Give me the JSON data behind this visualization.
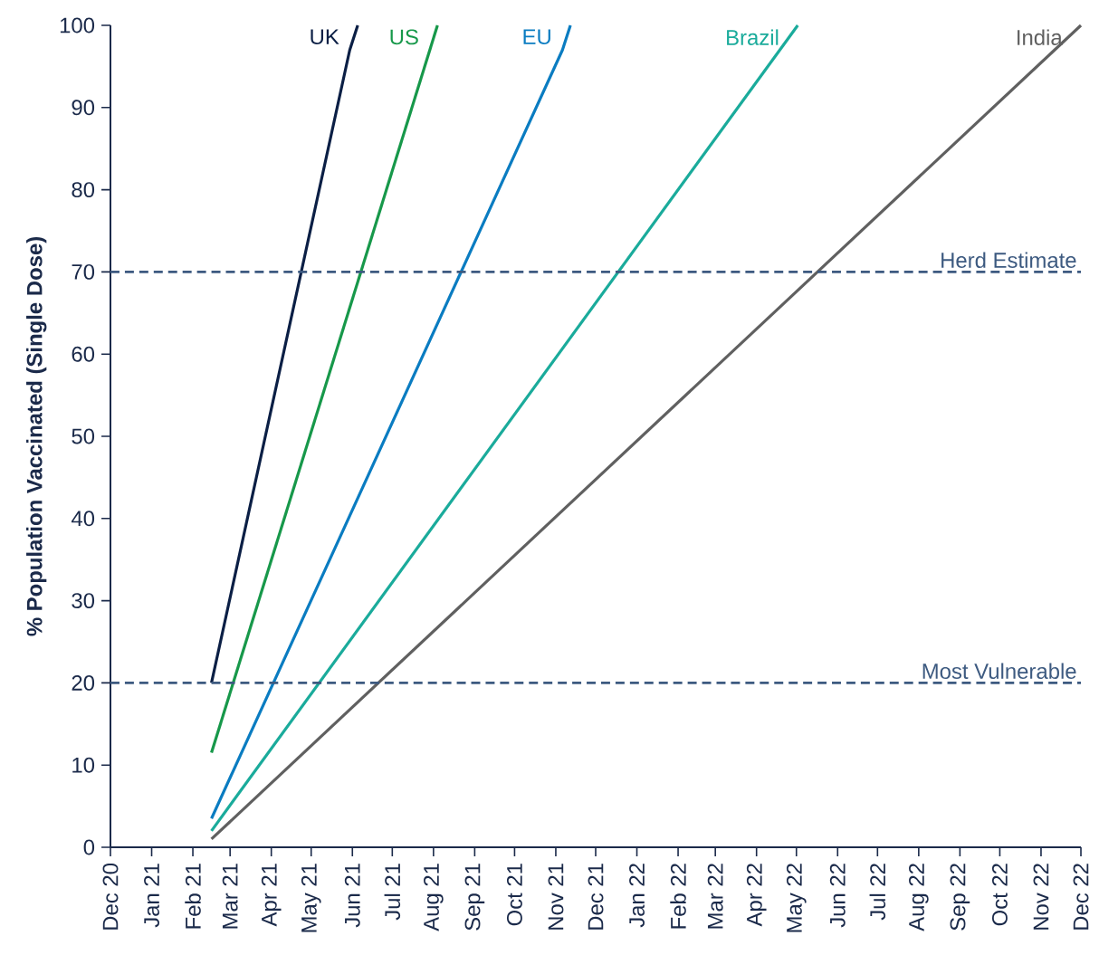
{
  "chart_data": {
    "type": "line",
    "ylabel": "% Population Vaccinated (Single Dose)",
    "xlim": [
      "2020-12-01",
      "2022-12-01"
    ],
    "ylim": [
      0,
      100
    ],
    "yticks": [
      0,
      10,
      20,
      30,
      40,
      50,
      60,
      70,
      80,
      90,
      100
    ],
    "xticks": [
      {
        "value": "2020-12-01",
        "label": "Dec 20"
      },
      {
        "value": "2021-01-01",
        "label": "Jan 21"
      },
      {
        "value": "2021-02-01",
        "label": "Feb 21"
      },
      {
        "value": "2021-03-01",
        "label": "Mar 21"
      },
      {
        "value": "2021-04-01",
        "label": "Apr 21"
      },
      {
        "value": "2021-05-01",
        "label": "May 21"
      },
      {
        "value": "2021-06-01",
        "label": "Jun 21"
      },
      {
        "value": "2021-07-01",
        "label": "Jul 21"
      },
      {
        "value": "2021-08-01",
        "label": "Aug 21"
      },
      {
        "value": "2021-09-01",
        "label": "Sep 21"
      },
      {
        "value": "2021-10-01",
        "label": "Oct 21"
      },
      {
        "value": "2021-11-01",
        "label": "Nov 21"
      },
      {
        "value": "2021-12-01",
        "label": "Dec 21"
      },
      {
        "value": "2022-01-01",
        "label": "Jan 22"
      },
      {
        "value": "2022-02-01",
        "label": "Feb 22"
      },
      {
        "value": "2022-03-01",
        "label": "Mar 22"
      },
      {
        "value": "2022-04-01",
        "label": "Apr 22"
      },
      {
        "value": "2022-05-01",
        "label": "May 22"
      },
      {
        "value": "2022-06-01",
        "label": "Jun 22"
      },
      {
        "value": "2022-07-01",
        "label": "Jul 22"
      },
      {
        "value": "2022-08-01",
        "label": "Aug 22"
      },
      {
        "value": "2022-09-01",
        "label": "Sep 22"
      },
      {
        "value": "2022-10-01",
        "label": "Oct 22"
      },
      {
        "value": "2022-11-01",
        "label": "Nov 22"
      },
      {
        "value": "2022-12-01",
        "label": "Dec 22"
      }
    ],
    "series": [
      {
        "name": "UK",
        "color": "#0b1f45",
        "x": [
          "2021-02-15",
          "2021-05-30",
          "2021-06-05"
        ],
        "values": [
          20,
          97,
          100
        ]
      },
      {
        "name": "US",
        "color": "#17984a",
        "x": [
          "2021-02-15",
          "2021-08-04"
        ],
        "values": [
          11.5,
          100
        ]
      },
      {
        "name": "EU",
        "color": "#0a7cc1",
        "x": [
          "2021-02-15",
          "2021-11-06",
          "2021-11-12"
        ],
        "values": [
          3.5,
          97,
          100
        ]
      },
      {
        "name": "Brazil",
        "color": "#1aab9b",
        "x": [
          "2021-02-15",
          "2022-05-02"
        ],
        "values": [
          2,
          100
        ]
      },
      {
        "name": "India",
        "color": "#606060",
        "x": [
          "2021-02-15",
          "2022-12-01"
        ],
        "values": [
          1,
          100
        ]
      }
    ],
    "ref_lines": [
      {
        "axis": "y",
        "value": 70,
        "label": "Herd Estimate",
        "color": "#3d5a80",
        "line_style": "dashed"
      },
      {
        "axis": "y",
        "value": 20,
        "label": "Most Vulnerable",
        "color": "#3d5a80",
        "line_style": "dashed"
      }
    ],
    "line_style": "solid",
    "marker": "none",
    "grid": false,
    "legend": false
  }
}
